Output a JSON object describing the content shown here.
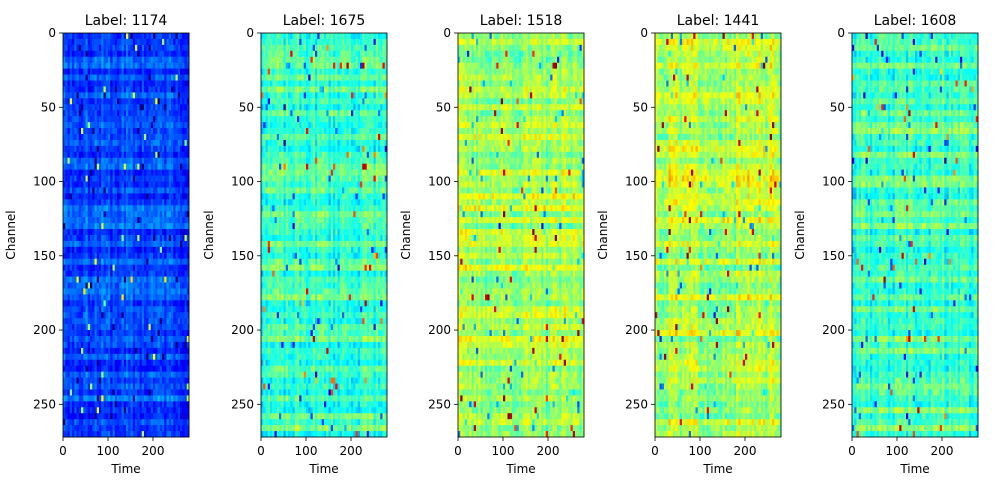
{
  "chart_data": [
    {
      "type": "heatmap",
      "title": "Label: 1174",
      "xlabel": "Time",
      "ylabel": "Channel",
      "xticks": [
        0,
        100,
        200
      ],
      "yticks": [
        0,
        50,
        100,
        150,
        200,
        250
      ],
      "xlim": [
        0,
        280
      ],
      "ylim": [
        272,
        0
      ],
      "colormap": "jet",
      "mean_intensity": 0.2,
      "spread": 0.06,
      "seed": 11
    },
    {
      "type": "heatmap",
      "title": "Label: 1675",
      "xlabel": "Time",
      "ylabel": "Channel",
      "xticks": [
        0,
        100,
        200
      ],
      "yticks": [
        0,
        50,
        100,
        150,
        200,
        250
      ],
      "xlim": [
        0,
        280
      ],
      "ylim": [
        272,
        0
      ],
      "colormap": "jet",
      "mean_intensity": 0.44,
      "spread": 0.08,
      "seed": 23
    },
    {
      "type": "heatmap",
      "title": "Label: 1518",
      "xlabel": "Time",
      "ylabel": "Channel",
      "xticks": [
        0,
        100,
        200
      ],
      "yticks": [
        0,
        50,
        100,
        150,
        200,
        250
      ],
      "xlim": [
        0,
        280
      ],
      "ylim": [
        272,
        0
      ],
      "colormap": "jet",
      "mean_intensity": 0.54,
      "spread": 0.08,
      "seed": 37
    },
    {
      "type": "heatmap",
      "title": "Label: 1441",
      "xlabel": "Time",
      "ylabel": "Channel",
      "xticks": [
        0,
        100,
        200
      ],
      "yticks": [
        0,
        50,
        100,
        150,
        200,
        250
      ],
      "xlim": [
        0,
        280
      ],
      "ylim": [
        272,
        0
      ],
      "colormap": "jet",
      "mean_intensity": 0.55,
      "spread": 0.09,
      "seed": 51
    },
    {
      "type": "heatmap",
      "title": "Label: 1608",
      "xlabel": "Time",
      "ylabel": "Channel",
      "xticks": [
        0,
        100,
        200
      ],
      "yticks": [
        0,
        50,
        100,
        150,
        200,
        250
      ],
      "xlim": [
        0,
        280
      ],
      "ylim": [
        272,
        0
      ],
      "colormap": "jet",
      "mean_intensity": 0.45,
      "spread": 0.08,
      "seed": 67
    }
  ]
}
